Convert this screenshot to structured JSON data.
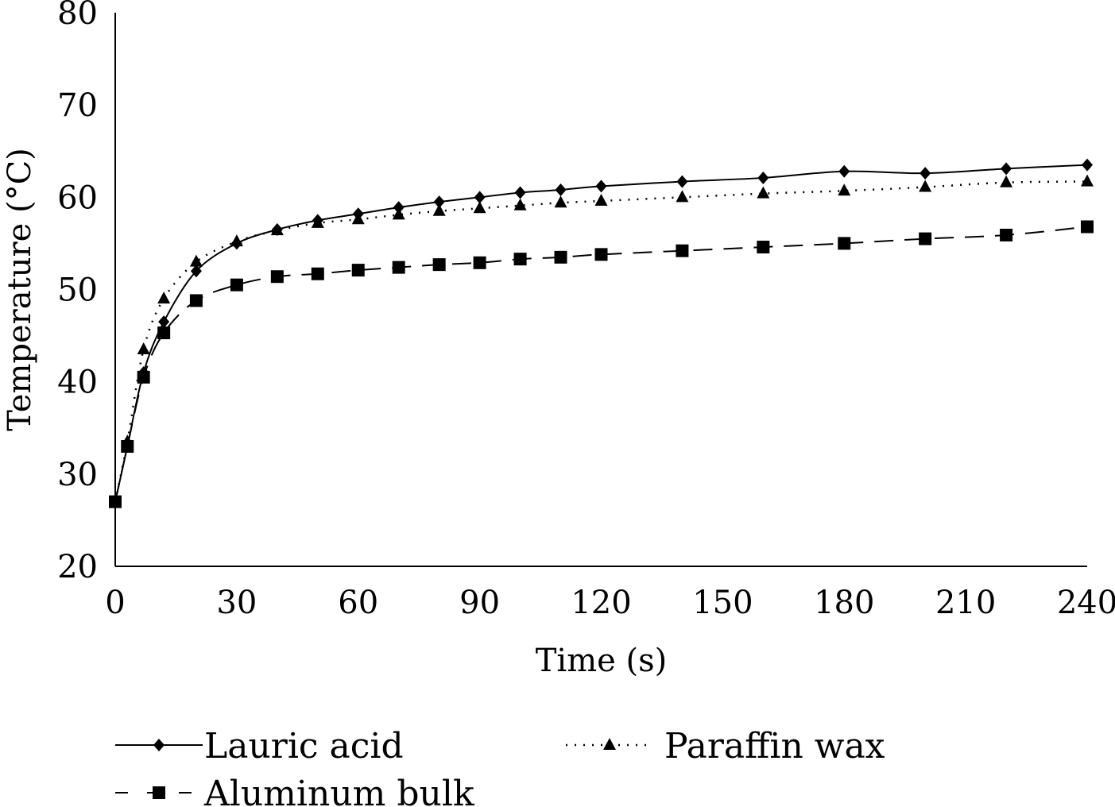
{
  "chart_data": {
    "type": "line",
    "title": "",
    "xlabel": "Time (s)",
    "ylabel": "Temperature (°C)",
    "xlim": [
      0,
      240
    ],
    "ylim": [
      20,
      80
    ],
    "xticks": [
      0,
      30,
      60,
      90,
      120,
      150,
      180,
      210,
      240
    ],
    "yticks": [
      20,
      30,
      40,
      50,
      60,
      70,
      80
    ],
    "grid": false,
    "legend": "bottom",
    "series": [
      {
        "name": "Lauric acid",
        "marker": "diamond",
        "line": "solid",
        "x": [
          0,
          3,
          7,
          12,
          20,
          30,
          40,
          50,
          60,
          70,
          80,
          90,
          100,
          110,
          120,
          140,
          160,
          180,
          200,
          220,
          240
        ],
        "y": [
          27,
          33,
          41,
          46.5,
          52,
          55,
          56.5,
          57.5,
          58.2,
          58.9,
          59.5,
          60,
          60.5,
          60.8,
          61.2,
          61.7,
          62.1,
          62.8,
          62.6,
          63.1,
          63.5
        ]
      },
      {
        "name": "Paraffin wax",
        "marker": "triangle",
        "line": "dotted",
        "x": [
          0,
          3,
          7,
          12,
          20,
          30,
          40,
          50,
          60,
          70,
          80,
          90,
          100,
          110,
          120,
          140,
          160,
          180,
          200,
          220,
          240
        ],
        "y": [
          27,
          33.5,
          43.5,
          49,
          53,
          55.2,
          56.4,
          57.2,
          57.6,
          58.1,
          58.5,
          58.8,
          59.1,
          59.4,
          59.6,
          60,
          60.4,
          60.7,
          61.1,
          61.6,
          61.7
        ]
      },
      {
        "name": "Aluminum bulk",
        "marker": "square",
        "line": "dashed",
        "x": [
          0,
          3,
          7,
          12,
          20,
          30,
          40,
          50,
          60,
          70,
          80,
          90,
          100,
          110,
          120,
          140,
          160,
          180,
          200,
          220,
          240
        ],
        "y": [
          27,
          33,
          40.5,
          45.3,
          48.8,
          50.5,
          51.4,
          51.7,
          52.1,
          52.4,
          52.7,
          52.9,
          53.3,
          53.5,
          53.8,
          54.2,
          54.6,
          55,
          55.5,
          55.9,
          56.8
        ]
      }
    ]
  }
}
